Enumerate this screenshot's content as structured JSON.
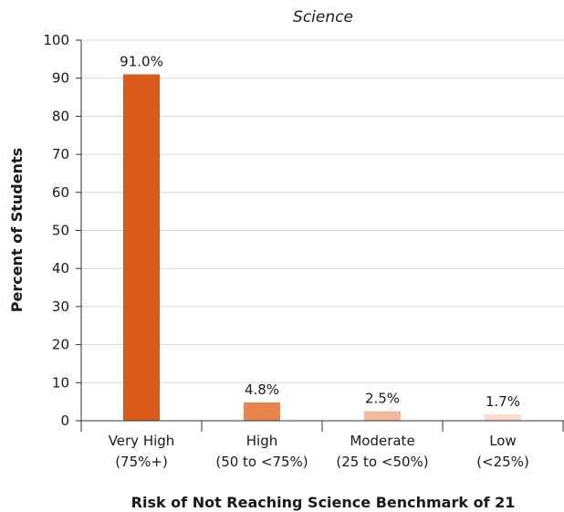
{
  "chart_data": {
    "type": "bar",
    "title": "Science",
    "xlabel": "Risk of Not Reaching Science Benchmark of 21",
    "ylabel": "Percent of Students",
    "ylim": [
      0,
      100
    ],
    "yticks": [
      0,
      10,
      20,
      30,
      40,
      50,
      60,
      70,
      80,
      90,
      100
    ],
    "grid": true,
    "legend": "none",
    "categories": [
      {
        "line1": "Very High",
        "line2": "(75%+)"
      },
      {
        "line1": "High",
        "line2": "(50 to <75%)"
      },
      {
        "line1": "Moderate",
        "line2": "(25 to <50%)"
      },
      {
        "line1": "Low",
        "line2": "(<25%)"
      }
    ],
    "values": [
      91.0,
      4.8,
      2.5,
      1.7
    ],
    "data_labels": [
      "91.0%",
      "4.8%",
      "2.5%",
      "1.7%"
    ],
    "colors": [
      "#d95a1a",
      "#e8844c",
      "#f4b99a",
      "#f9dccb"
    ]
  }
}
